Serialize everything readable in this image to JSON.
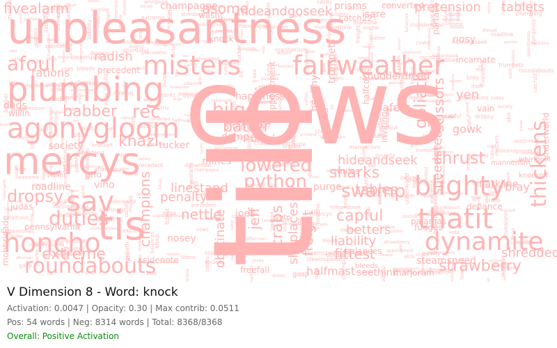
{
  "title": "V Dimension 8 - Word: knock",
  "metrics": "Activation: 0.0047 | Opacity: 0.30 | Max contrib: 0.0511",
  "counts": "Pos: 54 words | Neg: 8314 words | Total: 8368/8368",
  "status": "Overall: Positive Activation",
  "colors": {
    "word": "#ffb3b3",
    "title": "#111111",
    "meta": "#666666",
    "status": "#0a8a0a"
  },
  "words": [
    "cows",
    "till",
    "unpleasantness",
    "mercys",
    "plumbing",
    "agonygloom",
    "misters",
    "fairweather",
    "tis",
    "honcho",
    "roundabouts",
    "sav",
    "dynamite",
    "thatit",
    "blighty",
    "thickens",
    "strawberry",
    "python",
    "lowered",
    "swamp",
    "bilge",
    "afoul",
    "babber",
    "rec",
    "crabs",
    "fivealarm",
    "duties",
    "extreme",
    "tables",
    "hideandseek",
    "hideandgoseek",
    "asome",
    "sharks",
    "linestand",
    "capful",
    "fittest",
    "betters",
    "liability",
    "goliath",
    "scissors",
    "shredded",
    "khazi",
    "dropsy",
    "penalty",
    "nettle",
    "champions",
    "obstinate",
    "jeff",
    "shoplaces",
    "freight",
    "batter",
    "pretension",
    "tablets",
    "halfmast",
    "freefall",
    "sidenote",
    "nosey",
    "mines",
    "thrust",
    "yen",
    "gowk",
    "radish",
    "rations",
    "society",
    "willin",
    "dads",
    "tucker",
    "vino",
    "roadline",
    "pennsylvania",
    "judas",
    "bracket",
    "purge",
    "skis",
    "champagne",
    "wasnt",
    "prisms",
    "isare",
    "catch22",
    "converted",
    "happiness",
    "loafers",
    "ratties",
    "healthy",
    "speedsteam",
    "steamspeed",
    "pajamas",
    "defiance",
    "markline",
    "bray",
    "gtfo",
    "damp",
    "joes",
    "fudges",
    "appointment",
    "precedent",
    "incarnate",
    "afternoon",
    "eater",
    "underworld",
    "balances",
    "knock",
    "nosy",
    "halfcock",
    "shudderdread",
    "trumpets",
    "vain",
    "inviting",
    "partake",
    "mobbrigade",
    "seethink",
    "marjoram",
    "mules",
    "bleeds",
    "gasp",
    "vote",
    "mannerism",
    "whirlpool",
    "knockoff"
  ],
  "small_words_estimate": "many"
}
